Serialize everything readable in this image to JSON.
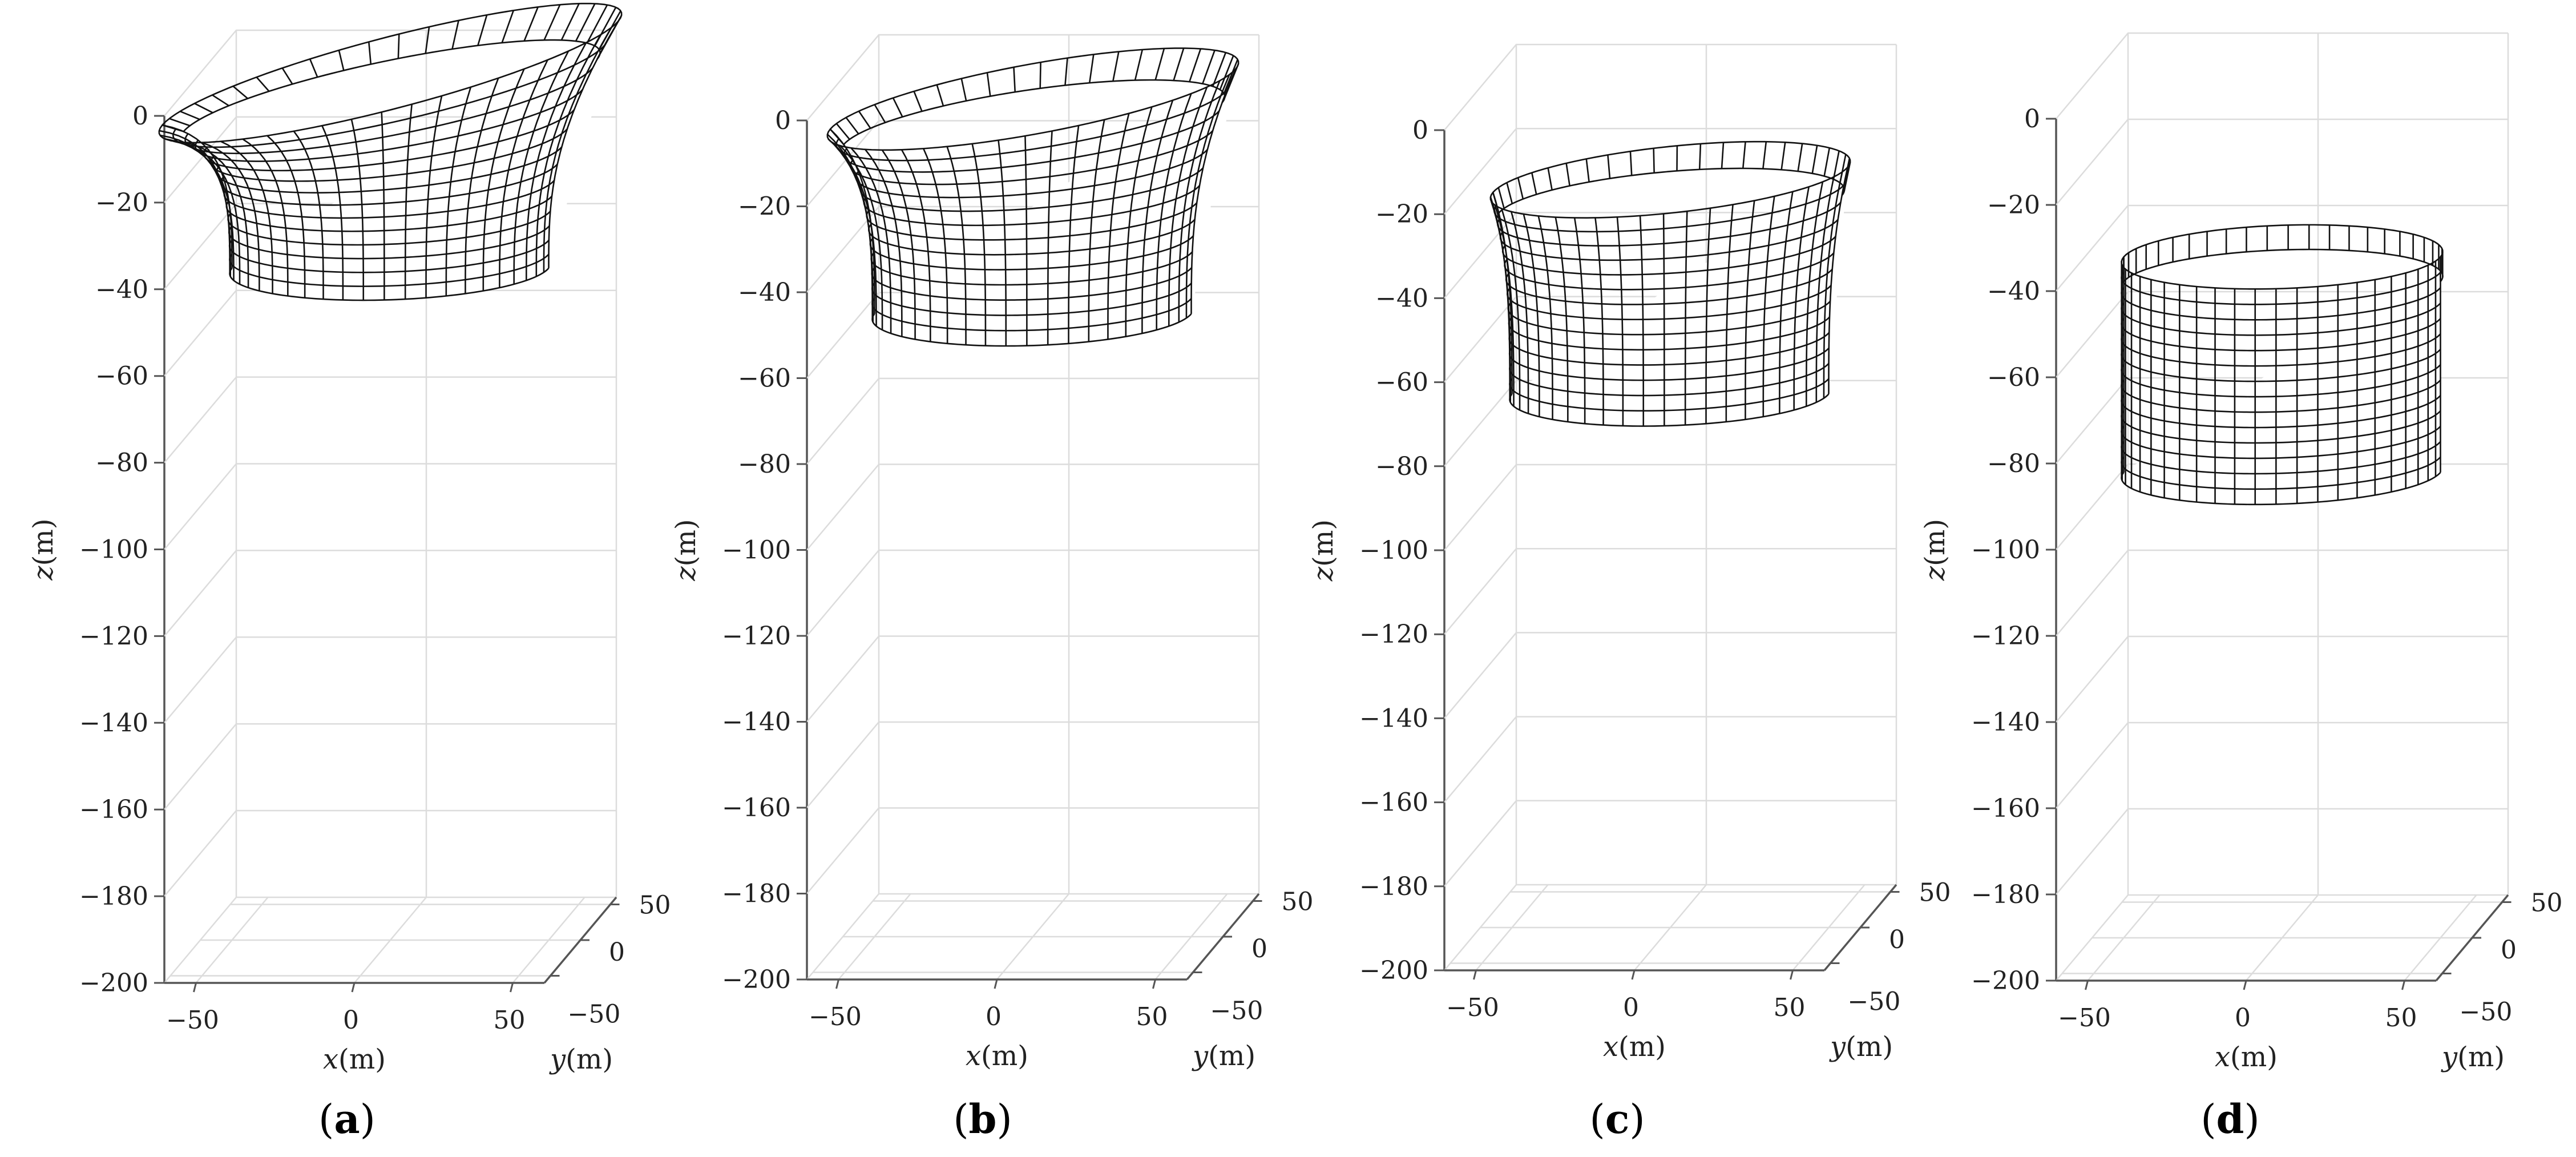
{
  "chart_data": [
    {
      "type": "surface-3d",
      "panel": "a",
      "caption": "(a)",
      "xlabel": "x(m)",
      "ylabel": "y(m)",
      "zlabel": "z(m)",
      "xlim": [
        -60,
        60
      ],
      "ylim": [
        -60,
        60
      ],
      "zlim": [
        -200,
        0
      ],
      "xticks": [
        "−50",
        "0",
        "50"
      ],
      "yticks": [
        "−50",
        "0",
        "50"
      ],
      "zticks": [
        "0",
        "−20",
        "−40",
        "−60",
        "−80",
        "−100",
        "−120",
        "−140",
        "−160",
        "−180",
        "−200"
      ],
      "cylinder": {
        "radius_m": 50,
        "top_z_m": 0,
        "bottom_z_m": -45,
        "top_flare_m": 22,
        "top_tilt_m": 12
      }
    },
    {
      "type": "surface-3d",
      "panel": "b",
      "caption": "(b)",
      "xlabel": "x(m)",
      "ylabel": "y(m)",
      "zlabel": "z(m)",
      "xlim": [
        -60,
        60
      ],
      "ylim": [
        -60,
        60
      ],
      "zlim": [
        -200,
        0
      ],
      "xticks": [
        "−50",
        "0",
        "50"
      ],
      "yticks": [
        "−50",
        "0",
        "50"
      ],
      "zticks": [
        "0",
        "−20",
        "−40",
        "−60",
        "−80",
        "−100",
        "−120",
        "−140",
        "−160",
        "−180",
        "−200"
      ],
      "cylinder": {
        "radius_m": 50,
        "top_z_m": -5,
        "bottom_z_m": -55,
        "top_flare_m": 14,
        "top_tilt_m": 7
      }
    },
    {
      "type": "surface-3d",
      "panel": "c",
      "caption": "(c)",
      "xlabel": "x(m)",
      "ylabel": "y(m)",
      "zlabel": "z(m)",
      "xlim": [
        -60,
        60
      ],
      "ylim": [
        -60,
        60
      ],
      "zlim": [
        -200,
        0
      ],
      "xticks": [
        "−50",
        "0",
        "50"
      ],
      "yticks": [
        "−50",
        "0",
        "50"
      ],
      "zticks": [
        "0",
        "−20",
        "−40",
        "−60",
        "−80",
        "−100",
        "−120",
        "−140",
        "−160",
        "−180",
        "−200"
      ],
      "cylinder": {
        "radius_m": 50,
        "top_z_m": -22,
        "bottom_z_m": -73,
        "top_flare_m": 6,
        "top_tilt_m": 3
      }
    },
    {
      "type": "surface-3d",
      "panel": "d",
      "caption": "(d)",
      "xlabel": "x(m)",
      "ylabel": "y(m)",
      "zlabel": "z(m)",
      "xlim": [
        -60,
        60
      ],
      "ylim": [
        -60,
        60
      ],
      "zlim": [
        -200,
        0
      ],
      "xticks": [
        "−50",
        "0",
        "50"
      ],
      "yticks": [
        "−50",
        "0",
        "50"
      ],
      "zticks": [
        "0",
        "−20",
        "−40",
        "−60",
        "−80",
        "−100",
        "−120",
        "−140",
        "−160",
        "−180",
        "−200"
      ],
      "cylinder": {
        "radius_m": 50,
        "top_z_m": -42,
        "bottom_z_m": -92,
        "top_flare_m": 0,
        "top_tilt_m": 0
      }
    }
  ]
}
